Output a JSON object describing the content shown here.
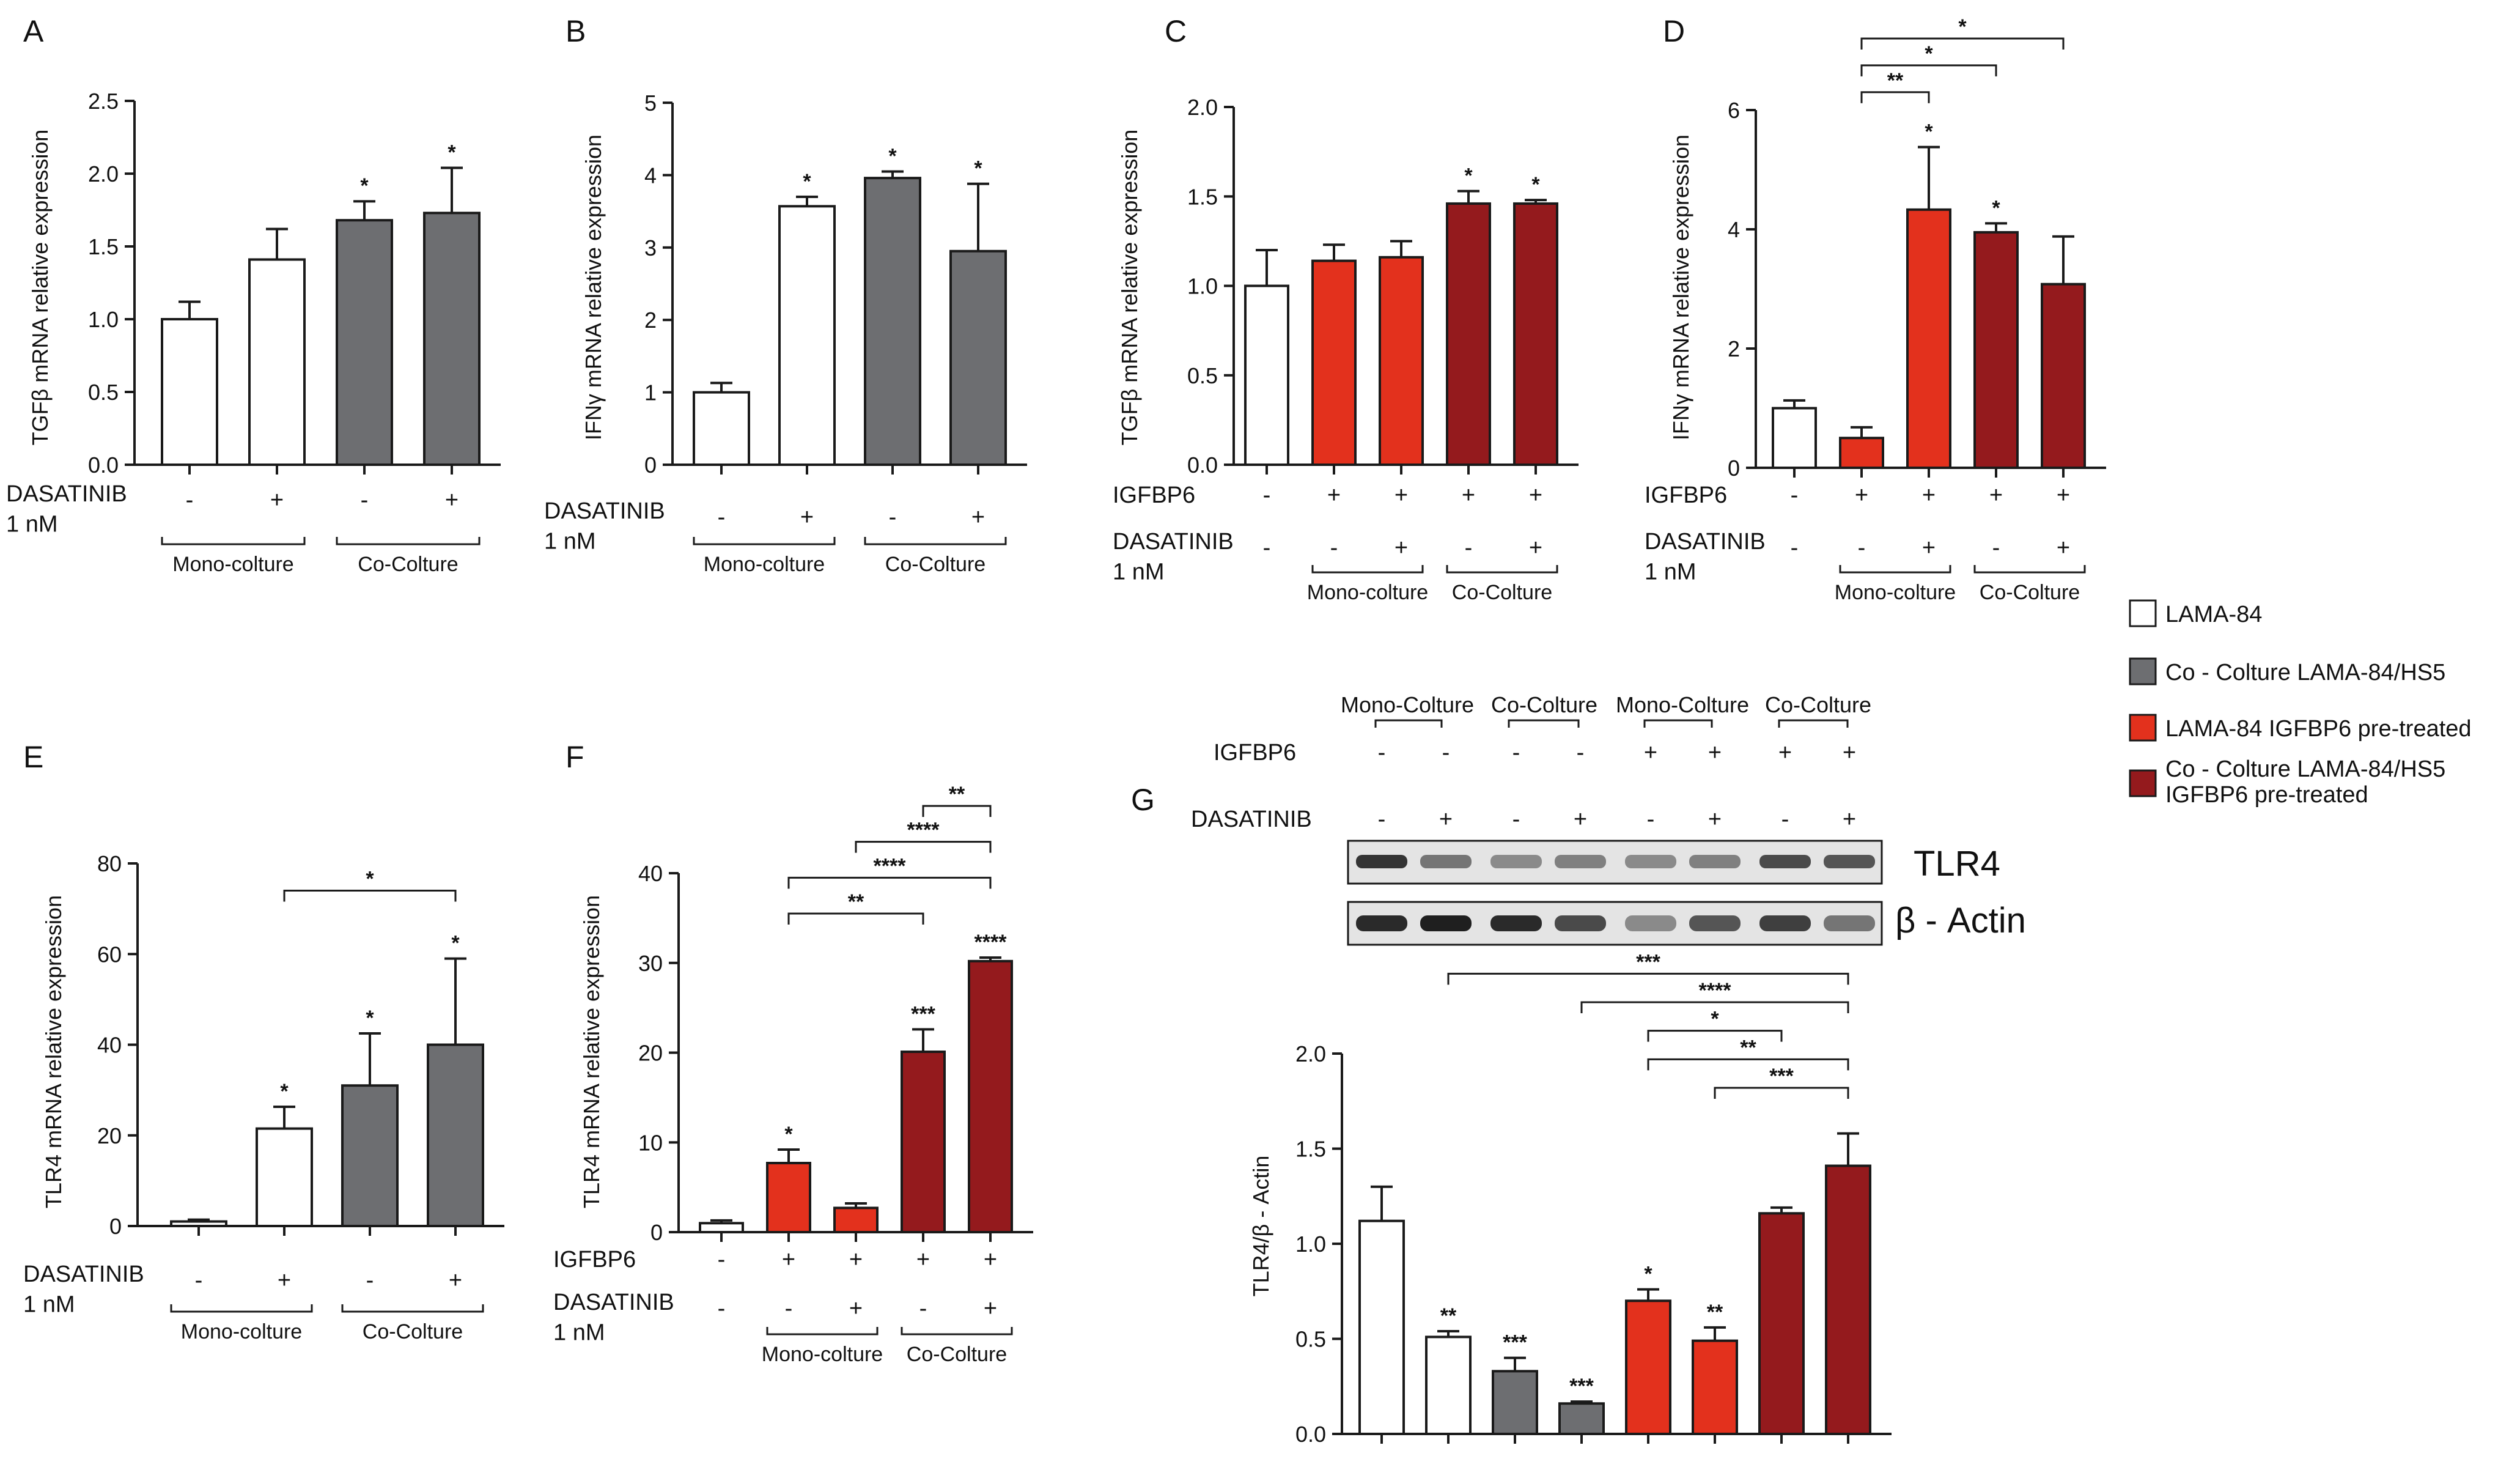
{
  "colors": {
    "white": "#ffffff",
    "grey": "#6d6e71",
    "red": "#e3311d",
    "darkred": "#941a1d",
    "stroke": "#1a1a1a"
  },
  "legend": [
    {
      "label": "LAMA-84",
      "color": "white"
    },
    {
      "label": "Co - Colture LAMA-84/HS5",
      "color": "grey"
    },
    {
      "label": "LAMA-84 IGFBP6 pre-treated",
      "color": "red"
    },
    {
      "label": "Co - Colture LAMA-84/HS5\nIGFBP6 pre-treated",
      "color": "darkred"
    }
  ],
  "western_blot": {
    "group_labels": [
      "Mono-Colture",
      "Co-Colture",
      "Mono-Colture",
      "Co-Colture"
    ],
    "igfbp6_label": "IGFBP6",
    "igfbp6_signs": [
      "-",
      "-",
      "-",
      "-",
      "+",
      "+",
      "+",
      "+"
    ],
    "dasatinib_label": "DASATINIB",
    "dasatinib_signs": [
      "-",
      "+",
      "-",
      "+",
      "-",
      "+",
      "-",
      "+"
    ],
    "band_intensity_tlr4": [
      0.85,
      0.55,
      0.45,
      0.5,
      0.45,
      0.5,
      0.75,
      0.7
    ],
    "band_intensity_actin": [
      0.9,
      0.95,
      0.9,
      0.75,
      0.45,
      0.7,
      0.8,
      0.55
    ],
    "protein_1": "TLR4",
    "protein_2": "β - Actin"
  },
  "chart_data": [
    {
      "panel": "A",
      "type": "bar",
      "ylabel": "TGFβ mRNA relative expression",
      "ylim": [
        0,
        2.5
      ],
      "yticks": [
        "0.0",
        "0.5",
        "1.0",
        "1.5",
        "2.0",
        "2.5"
      ],
      "values": [
        1.0,
        1.41,
        1.68,
        1.73
      ],
      "errors": [
        0.12,
        0.21,
        0.13,
        0.31
      ],
      "colors": [
        "white",
        "white",
        "grey",
        "grey"
      ],
      "sig": [
        "",
        "",
        "*",
        "*"
      ],
      "rows": [
        {
          "label": "DASATINIB\n1 nM",
          "signs": [
            "-",
            "+",
            "-",
            "+"
          ]
        }
      ],
      "groups": [
        {
          "label": "Mono-colture",
          "bars": [
            0,
            1
          ]
        },
        {
          "label": "Co-Colture",
          "bars": [
            2,
            3
          ]
        }
      ],
      "brackets": []
    },
    {
      "panel": "B",
      "type": "bar",
      "ylabel": "IFNγ mRNA relative expression",
      "ylim": [
        0,
        5
      ],
      "yticks": [
        "0",
        "1",
        "2",
        "3",
        "4",
        "5"
      ],
      "values": [
        1.0,
        3.57,
        3.96,
        2.95
      ],
      "errors": [
        0.13,
        0.13,
        0.09,
        0.93
      ],
      "colors": [
        "white",
        "white",
        "grey",
        "grey"
      ],
      "sig": [
        "",
        "*",
        "*",
        "*"
      ],
      "rows": [
        {
          "label": "DASATINIB\n1 nM",
          "signs": [
            "-",
            "+",
            "-",
            "+"
          ]
        }
      ],
      "groups": [
        {
          "label": "Mono-colture",
          "bars": [
            0,
            1
          ]
        },
        {
          "label": "Co-Colture",
          "bars": [
            2,
            3
          ]
        }
      ],
      "brackets": []
    },
    {
      "panel": "C",
      "type": "bar",
      "ylabel": "TGFβ mRNA relative expression",
      "ylim": [
        0,
        2.0
      ],
      "yticks": [
        "0.0",
        "0.5",
        "1.0",
        "1.5",
        "2.0"
      ],
      "values": [
        1.0,
        1.14,
        1.16,
        1.46,
        1.46
      ],
      "errors": [
        0.2,
        0.09,
        0.09,
        0.07,
        0.02
      ],
      "colors": [
        "white",
        "red",
        "red",
        "darkred",
        "darkred"
      ],
      "sig": [
        "",
        "",
        "",
        "*",
        "*"
      ],
      "rows": [
        {
          "label": "IGFBP6",
          "signs": [
            "-",
            "+",
            "+",
            "+",
            "+"
          ]
        },
        {
          "label": "DASATINIB\n1 nM",
          "signs": [
            "-",
            "-",
            "+",
            "-",
            "+"
          ]
        }
      ],
      "groups": [
        {
          "label": "Mono-colture",
          "bars": [
            1,
            2
          ]
        },
        {
          "label": "Co-Colture",
          "bars": [
            3,
            4
          ]
        }
      ],
      "brackets": []
    },
    {
      "panel": "D",
      "type": "bar",
      "ylabel": "IFNγ mRNA relative expression",
      "ylim": [
        0,
        6
      ],
      "yticks": [
        "0",
        "2",
        "4",
        "6"
      ],
      "values": [
        1.0,
        0.5,
        4.33,
        3.95,
        3.08
      ],
      "errors": [
        0.13,
        0.18,
        1.05,
        0.15,
        0.8
      ],
      "colors": [
        "white",
        "red",
        "red",
        "darkred",
        "darkred"
      ],
      "sig": [
        "",
        "",
        "*",
        "*",
        ""
      ],
      "rows": [
        {
          "label": "IGFBP6",
          "signs": [
            "-",
            "+",
            "+",
            "+",
            "+"
          ]
        },
        {
          "label": "DASATINIB\n1 nM",
          "signs": [
            "-",
            "-",
            "+",
            "-",
            "+"
          ]
        }
      ],
      "groups": [
        {
          "label": "Mono-colture",
          "bars": [
            1,
            2
          ]
        },
        {
          "label": "Co-Colture",
          "bars": [
            3,
            4
          ]
        }
      ],
      "brackets": [
        {
          "from": 1,
          "to": 2,
          "y": 6.3,
          "label": "**"
        },
        {
          "from": 1,
          "to": 3,
          "y": 6.75,
          "label": "*"
        },
        {
          "from": 1,
          "to": 4,
          "y": 7.2,
          "label": "*"
        }
      ]
    },
    {
      "panel": "E",
      "type": "bar",
      "ylabel": "TLR4 mRNA relative expression",
      "ylim": [
        0,
        80
      ],
      "yticks": [
        "0",
        "20",
        "40",
        "60",
        "80"
      ],
      "values": [
        1.0,
        21.5,
        31.0,
        40.0
      ],
      "errors": [
        0.4,
        4.8,
        11.5,
        19.0
      ],
      "colors": [
        "white",
        "white",
        "grey",
        "grey"
      ],
      "sig": [
        "",
        "*",
        "*",
        "*"
      ],
      "rows": [
        {
          "label": "DASATINIB\n1 nM",
          "signs": [
            "-",
            "+",
            "-",
            "+"
          ]
        }
      ],
      "groups": [
        {
          "label": "Mono-colture",
          "bars": [
            0,
            1
          ]
        },
        {
          "label": "Co-Colture",
          "bars": [
            2,
            3
          ]
        }
      ],
      "brackets": [
        {
          "from": 1,
          "to": 3,
          "y": 74,
          "label": "*"
        }
      ]
    },
    {
      "panel": "F",
      "type": "bar",
      "ylabel": "TLR4 mRNA relative expression",
      "ylim": [
        0,
        40
      ],
      "yticks": [
        "0",
        "10",
        "20",
        "30",
        "40"
      ],
      "values": [
        1.0,
        7.7,
        2.7,
        20.1,
        30.2
      ],
      "errors": [
        0.3,
        1.5,
        0.5,
        2.5,
        0.4
      ],
      "colors": [
        "white",
        "red",
        "red",
        "darkred",
        "darkred"
      ],
      "sig": [
        "",
        "*",
        "",
        "***",
        "****"
      ],
      "rows": [
        {
          "label": "IGFBP6",
          "signs": [
            "-",
            "+",
            "+",
            "+",
            "+"
          ]
        },
        {
          "label": "DASATINIB\n1 nM",
          "signs": [
            "-",
            "-",
            "+",
            "-",
            "+"
          ]
        }
      ],
      "groups": [
        {
          "label": "Mono-colture",
          "bars": [
            1,
            2
          ]
        },
        {
          "label": "Co-Colture",
          "bars": [
            3,
            4
          ]
        }
      ],
      "brackets": [
        {
          "from": 1,
          "to": 3,
          "y": 35.5,
          "label": "**"
        },
        {
          "from": 1,
          "to": 4,
          "y": 39.5,
          "label": "****"
        },
        {
          "from": 2,
          "to": 4,
          "y": 43.5,
          "label": "****"
        },
        {
          "from": 3,
          "to": 4,
          "y": 47.5,
          "label": "**"
        }
      ]
    },
    {
      "panel": "G",
      "type": "bar",
      "ylabel": "TLR4/β - Actin",
      "ylim": [
        0,
        2.0
      ],
      "yticks": [
        "0.0",
        "0.5",
        "1.0",
        "1.5",
        "2.0"
      ],
      "values": [
        1.12,
        0.51,
        0.33,
        0.16,
        0.7,
        0.49,
        1.16,
        1.41
      ],
      "errors": [
        0.18,
        0.03,
        0.07,
        0.01,
        0.06,
        0.07,
        0.03,
        0.17
      ],
      "colors": [
        "white",
        "white",
        "grey",
        "grey",
        "red",
        "red",
        "darkred",
        "darkred"
      ],
      "sig": [
        "",
        "**",
        "***",
        "***",
        "*",
        "**",
        "",
        ""
      ],
      "rows": [],
      "groups": [],
      "brackets": [
        {
          "from": 1,
          "to": 7,
          "y": 2.42,
          "label": "***"
        },
        {
          "from": 3,
          "to": 7,
          "y": 2.27,
          "label": "****"
        },
        {
          "from": 4,
          "to": 6,
          "y": 2.12,
          "label": "*"
        },
        {
          "from": 4,
          "to": 7,
          "y": 1.97,
          "label": "**"
        },
        {
          "from": 5,
          "to": 7,
          "y": 1.82,
          "label": "***"
        }
      ]
    }
  ]
}
